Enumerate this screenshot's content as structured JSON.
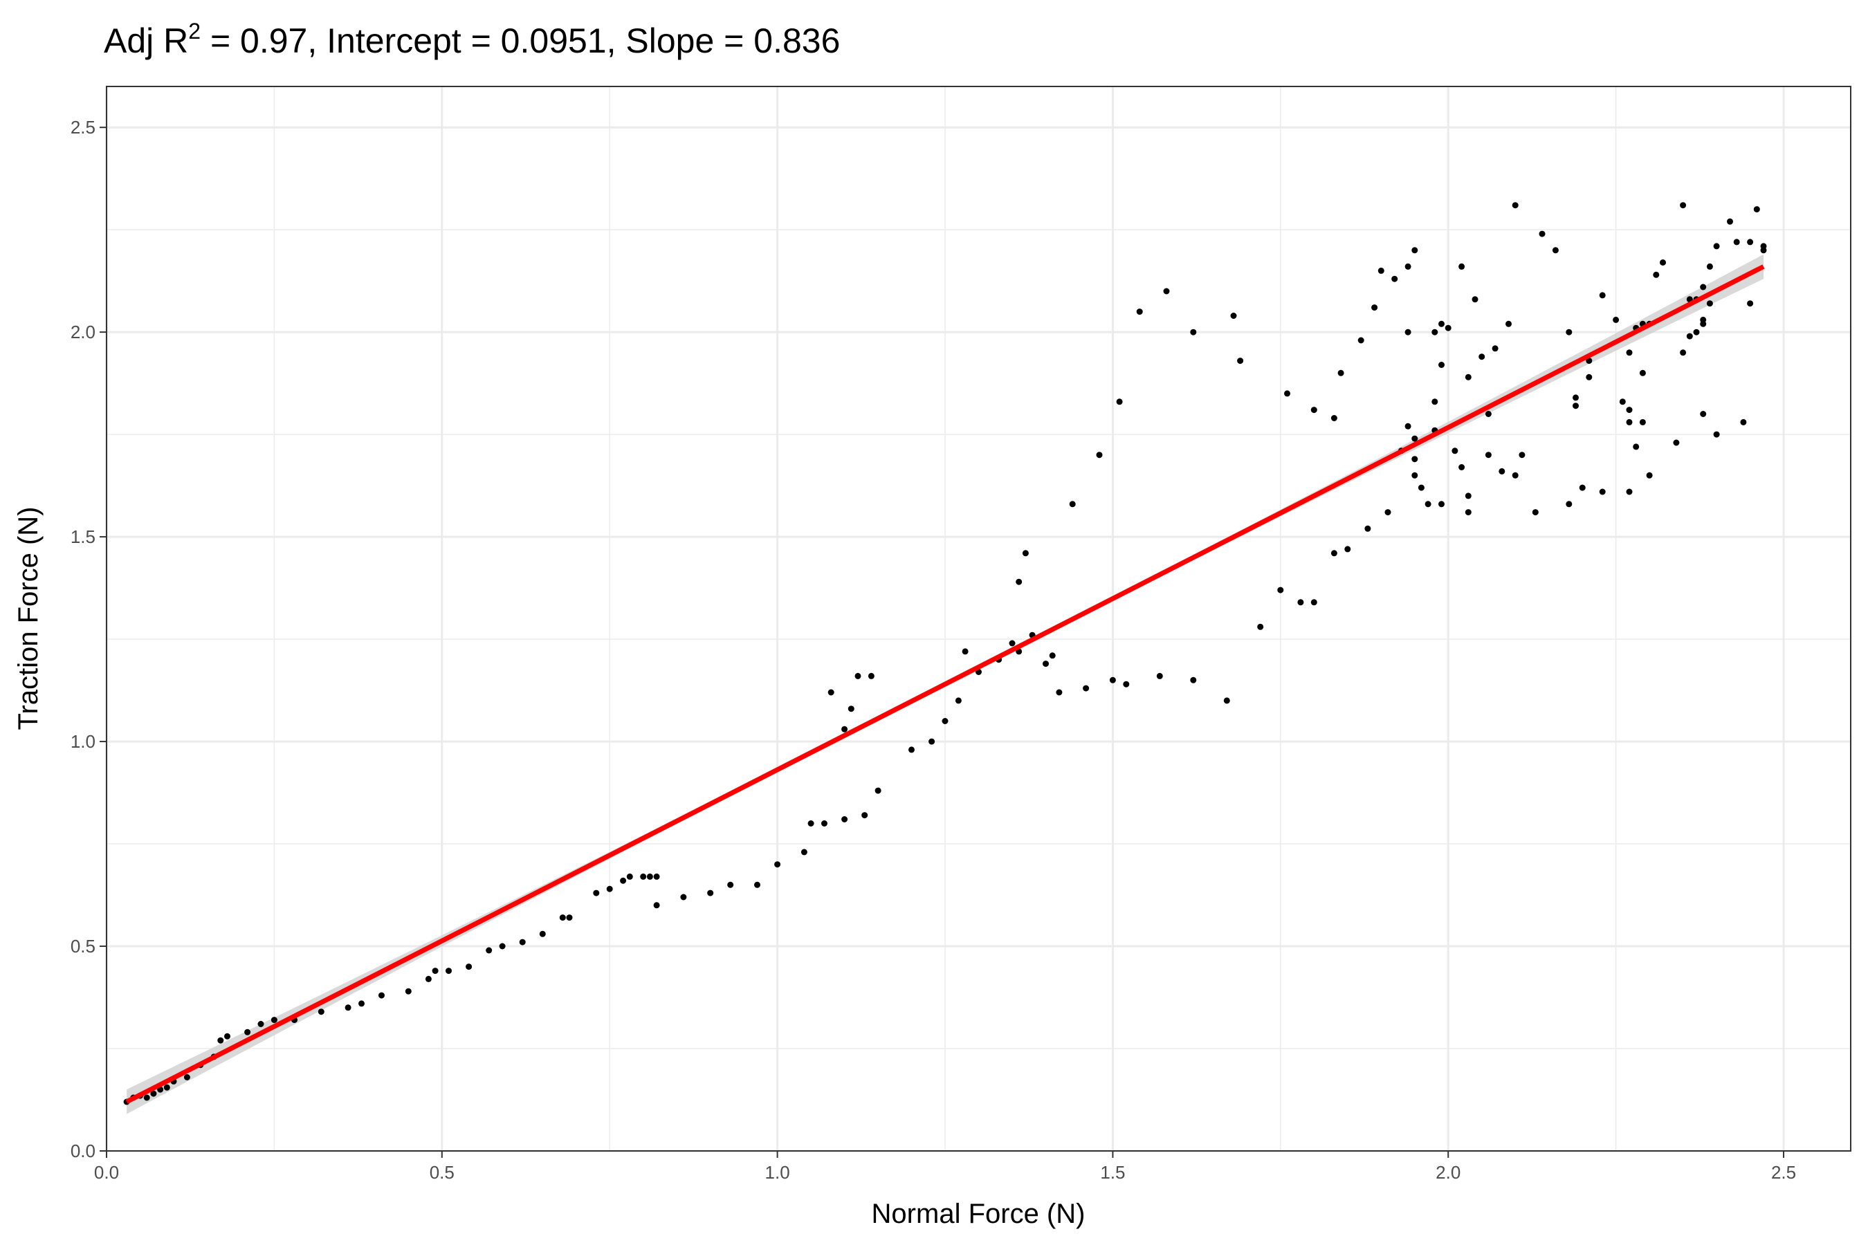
{
  "chart_data": {
    "type": "scatter",
    "title": {
      "prefix": "Adj R",
      "superscript": "2",
      "suffix": " = 0.97, Intercept = 0.0951, Slope = 0.836"
    },
    "xlabel": "Normal Force (N)",
    "ylabel": "Traction Force (N)",
    "xlim": [
      0,
      2.6
    ],
    "ylim": [
      0,
      2.6
    ],
    "xticks": [
      0.0,
      0.5,
      1.0,
      1.5,
      2.0,
      2.5
    ],
    "xtick_labels": [
      "0.0",
      "0.5",
      "1.0",
      "1.5",
      "2.0",
      "2.5"
    ],
    "yticks": [
      0.0,
      0.5,
      1.0,
      1.5,
      2.0,
      2.5
    ],
    "ytick_labels": [
      "0.0",
      "0.5",
      "1.0",
      "1.5",
      "2.0",
      "2.5"
    ],
    "grid": true,
    "theme": "black-and-white panel",
    "colors": {
      "points": "#000000",
      "fit_line": "#ff0000",
      "confidence_band": "#cccccc",
      "grid": "#ebebeb",
      "panel_border": "#333333"
    },
    "fit": {
      "intercept": 0.0951,
      "slope": 0.836,
      "x_range": [
        0.03,
        2.47
      ],
      "adj_r2": 0.97
    },
    "points": [
      [
        0.03,
        0.12
      ],
      [
        0.04,
        0.13
      ],
      [
        0.05,
        0.135
      ],
      [
        0.06,
        0.13
      ],
      [
        0.07,
        0.14
      ],
      [
        0.08,
        0.15
      ],
      [
        0.09,
        0.155
      ],
      [
        0.1,
        0.17
      ],
      [
        0.12,
        0.18
      ],
      [
        0.14,
        0.21
      ],
      [
        0.16,
        0.23
      ],
      [
        0.17,
        0.27
      ],
      [
        0.18,
        0.28
      ],
      [
        0.21,
        0.29
      ],
      [
        0.23,
        0.31
      ],
      [
        0.25,
        0.32
      ],
      [
        0.28,
        0.32
      ],
      [
        0.32,
        0.34
      ],
      [
        0.36,
        0.35
      ],
      [
        0.38,
        0.36
      ],
      [
        0.41,
        0.38
      ],
      [
        0.45,
        0.39
      ],
      [
        0.48,
        0.42
      ],
      [
        0.49,
        0.44
      ],
      [
        0.51,
        0.44
      ],
      [
        0.54,
        0.45
      ],
      [
        0.57,
        0.49
      ],
      [
        0.59,
        0.5
      ],
      [
        0.62,
        0.51
      ],
      [
        0.65,
        0.53
      ],
      [
        0.68,
        0.57
      ],
      [
        0.69,
        0.57
      ],
      [
        0.73,
        0.63
      ],
      [
        0.75,
        0.64
      ],
      [
        0.77,
        0.66
      ],
      [
        0.78,
        0.67
      ],
      [
        0.8,
        0.67
      ],
      [
        0.81,
        0.67
      ],
      [
        0.82,
        0.67
      ],
      [
        0.82,
        0.6
      ],
      [
        0.86,
        0.62
      ],
      [
        0.9,
        0.63
      ],
      [
        0.93,
        0.65
      ],
      [
        0.97,
        0.65
      ],
      [
        1.0,
        0.7
      ],
      [
        1.04,
        0.73
      ],
      [
        1.05,
        0.8
      ],
      [
        1.07,
        0.8
      ],
      [
        1.08,
        1.12
      ],
      [
        1.1,
        0.81
      ],
      [
        1.1,
        1.03
      ],
      [
        1.11,
        1.08
      ],
      [
        1.12,
        1.16
      ],
      [
        1.13,
        0.82
      ],
      [
        1.14,
        1.16
      ],
      [
        1.15,
        0.88
      ],
      [
        1.2,
        0.98
      ],
      [
        1.23,
        1.0
      ],
      [
        1.25,
        1.05
      ],
      [
        1.27,
        1.1
      ],
      [
        1.28,
        1.22
      ],
      [
        1.3,
        1.17
      ],
      [
        1.33,
        1.2
      ],
      [
        1.35,
        1.24
      ],
      [
        1.36,
        1.22
      ],
      [
        1.36,
        1.39
      ],
      [
        1.37,
        1.46
      ],
      [
        1.38,
        1.26
      ],
      [
        1.4,
        1.19
      ],
      [
        1.41,
        1.21
      ],
      [
        1.42,
        1.12
      ],
      [
        1.44,
        1.58
      ],
      [
        1.46,
        1.13
      ],
      [
        1.48,
        1.7
      ],
      [
        1.5,
        1.15
      ],
      [
        1.51,
        1.83
      ],
      [
        1.52,
        1.14
      ],
      [
        1.54,
        2.05
      ],
      [
        1.57,
        1.16
      ],
      [
        1.58,
        2.1
      ],
      [
        1.62,
        1.15
      ],
      [
        1.62,
        2.0
      ],
      [
        1.67,
        1.1
      ],
      [
        1.68,
        2.04
      ],
      [
        1.69,
        1.93
      ],
      [
        1.72,
        1.28
      ],
      [
        1.75,
        1.37
      ],
      [
        1.76,
        1.85
      ],
      [
        1.78,
        1.34
      ],
      [
        1.8,
        1.34
      ],
      [
        1.8,
        1.81
      ],
      [
        1.83,
        1.79
      ],
      [
        1.83,
        1.46
      ],
      [
        1.84,
        1.9
      ],
      [
        1.85,
        1.47
      ],
      [
        1.87,
        1.98
      ],
      [
        1.88,
        1.52
      ],
      [
        1.89,
        2.06
      ],
      [
        1.9,
        2.15
      ],
      [
        1.91,
        1.56
      ],
      [
        1.92,
        2.13
      ],
      [
        1.93,
        1.71
      ],
      [
        1.94,
        1.77
      ],
      [
        1.94,
        2.0
      ],
      [
        1.94,
        2.16
      ],
      [
        1.95,
        1.69
      ],
      [
        1.95,
        1.74
      ],
      [
        1.95,
        2.2
      ],
      [
        1.95,
        1.65
      ],
      [
        1.96,
        1.62
      ],
      [
        1.97,
        1.58
      ],
      [
        1.98,
        1.83
      ],
      [
        1.98,
        2.0
      ],
      [
        1.98,
        1.76
      ],
      [
        1.99,
        1.92
      ],
      [
        1.99,
        2.02
      ],
      [
        1.99,
        1.58
      ],
      [
        2.0,
        2.01
      ],
      [
        2.01,
        1.71
      ],
      [
        2.02,
        2.16
      ],
      [
        2.02,
        1.67
      ],
      [
        2.03,
        1.6
      ],
      [
        2.03,
        1.89
      ],
      [
        2.03,
        1.56
      ],
      [
        2.04,
        2.08
      ],
      [
        2.05,
        1.94
      ],
      [
        2.06,
        1.8
      ],
      [
        2.06,
        1.7
      ],
      [
        2.07,
        1.96
      ],
      [
        2.08,
        1.66
      ],
      [
        2.09,
        2.02
      ],
      [
        2.1,
        1.65
      ],
      [
        2.1,
        2.31
      ],
      [
        2.11,
        1.7
      ],
      [
        2.13,
        1.56
      ],
      [
        2.14,
        2.24
      ],
      [
        2.16,
        2.2
      ],
      [
        2.18,
        1.58
      ],
      [
        2.18,
        2.0
      ],
      [
        2.19,
        1.82
      ],
      [
        2.19,
        1.84
      ],
      [
        2.2,
        1.62
      ],
      [
        2.21,
        1.89
      ],
      [
        2.21,
        1.93
      ],
      [
        2.23,
        1.61
      ],
      [
        2.23,
        2.09
      ],
      [
        2.25,
        2.03
      ],
      [
        2.26,
        1.83
      ],
      [
        2.27,
        1.61
      ],
      [
        2.27,
        1.78
      ],
      [
        2.27,
        1.81
      ],
      [
        2.27,
        1.95
      ],
      [
        2.28,
        1.72
      ],
      [
        2.28,
        2.01
      ],
      [
        2.29,
        1.9
      ],
      [
        2.29,
        2.02
      ],
      [
        2.29,
        1.78
      ],
      [
        2.3,
        2.02
      ],
      [
        2.3,
        1.65
      ],
      [
        2.31,
        2.14
      ],
      [
        2.32,
        2.17
      ],
      [
        2.34,
        1.73
      ],
      [
        2.35,
        2.31
      ],
      [
        2.35,
        1.95
      ],
      [
        2.36,
        1.99
      ],
      [
        2.36,
        2.08
      ],
      [
        2.37,
        2.0
      ],
      [
        2.37,
        2.08
      ],
      [
        2.38,
        2.02
      ],
      [
        2.38,
        2.03
      ],
      [
        2.38,
        1.8
      ],
      [
        2.38,
        2.11
      ],
      [
        2.39,
        2.07
      ],
      [
        2.39,
        2.16
      ],
      [
        2.4,
        1.75
      ],
      [
        2.4,
        2.21
      ],
      [
        2.42,
        2.27
      ],
      [
        2.43,
        2.22
      ],
      [
        2.44,
        1.78
      ],
      [
        2.45,
        2.07
      ],
      [
        2.45,
        2.22
      ],
      [
        2.46,
        2.3
      ],
      [
        2.47,
        2.21
      ],
      [
        2.47,
        2.2
      ]
    ]
  }
}
